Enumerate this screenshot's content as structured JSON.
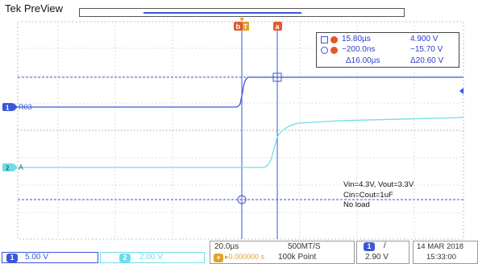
{
  "app": {
    "title": "Tek PreView"
  },
  "display": {
    "ch1_label": "R03",
    "ch2_label": "A",
    "trigger_marker_letter": "T",
    "cursor_a_letter": "a",
    "cursor_b_letter": "b"
  },
  "cursor_readout": {
    "a_time": "15.80µs",
    "a_value": "4.900 V",
    "b_time": "−200.0ns",
    "b_value": "−15.70 V",
    "delta_time": "Δ16.00µs",
    "delta_value": "Δ20.60 V"
  },
  "annotation": {
    "lines": [
      "Vin=4.3V, Vout=3.3V",
      "Cin=Cout=1uF",
      "No load"
    ]
  },
  "bottom": {
    "ch1_badge": "1",
    "ch1_scale": "5.00 V",
    "ch2_badge": "2",
    "ch2_scale": "2.00 V",
    "horizontal_scale": "20.0µs",
    "sample_rate": "500MT/S",
    "position_badge": "+",
    "position_value": "▸0.000000 s",
    "record_length": "100k Point",
    "trigger_source_badge": "1",
    "trigger_slope": "/",
    "trigger_level": "2.90 V",
    "date": "14 MAR 2018",
    "time": "15:33:00"
  },
  "colors": {
    "ch1": "#3a57d6",
    "ch2": "#6fdcea",
    "cursor_a": "#e3572b",
    "cursor_b": "#e3572b",
    "grid": "#b8b8b8"
  }
}
